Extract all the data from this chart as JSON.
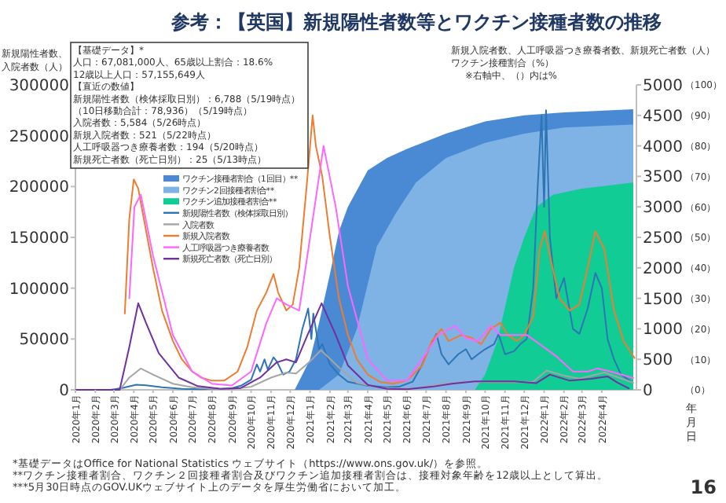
{
  "chart_data": {
    "type": "line",
    "title": "参考：【英国】新規陽性者数等とワクチン接種者数の推移",
    "xlabel": "年月日",
    "ylabel": "新規陽性者数、入院者数（人）",
    "y2label": "新規入院者数、人工呼吸器つき療養者数、新規死亡者数（人）ワクチン接種割合（%）",
    "legend": "left",
    "annotations": [
      "【基礎データ】*",
      "人口：67,081,000人、65歳以上割合：18.6%",
      "12歳以上人口：57,155,649人",
      "【直近の数値】",
      "新規陽性者数（検体採取日別）：6,788（5/19時点）",
      "（10日移動合計：78,936）（5/19時点）",
      "入院者数：5,584（5/26時点）",
      "新規入院者数：521（5/22時点）",
      "人工呼吸器つき療養者数：194（5/20時点）",
      "新規死亡者数（死亡日別）：25（5/13時点）",
      "※右軸中、（）内は%",
      "*基礎データはOffice for National Statistics ウェブサイト（https://www.ons.gov.uk/）を参照。",
      "**ワクチン接種者割合、ワクチン２回接種者割合及びワクチン追加接種者割合は、接種対象年齢を12歳以上として算出。",
      "***5月30日時点のGOV.UKウェブサイト上のデータを厚生労働省において加工。",
      "16"
    ],
    "xlim": [
      "2020-01-01",
      "2022-05-25"
    ],
    "xticks": [
      {
        "value": "2020-01-01",
        "label": "2020年1月"
      },
      {
        "value": "2020-02-01",
        "label": "2020年2月"
      },
      {
        "value": "2020-03-01",
        "label": "2020年3月"
      },
      {
        "value": "2020-04-01",
        "label": "2020年4月"
      },
      {
        "value": "2020-05-01",
        "label": "2020年5月"
      },
      {
        "value": "2020-06-01",
        "label": "2020年6月"
      },
      {
        "value": "2020-07-01",
        "label": "2020年7月"
      },
      {
        "value": "2020-08-01",
        "label": "2020年8月"
      },
      {
        "value": "2020-09-01",
        "label": "2020年9月"
      },
      {
        "value": "2020-10-01",
        "label": "2020年10月"
      },
      {
        "value": "2020-11-01",
        "label": "2020年11月"
      },
      {
        "value": "2020-12-01",
        "label": "2020年12月"
      },
      {
        "value": "2021-01-01",
        "label": "2021年1月"
      },
      {
        "value": "2021-02-01",
        "label": "2021年2月"
      },
      {
        "value": "2021-03-01",
        "label": "2021年3月"
      },
      {
        "value": "2021-04-01",
        "label": "2021年4月"
      },
      {
        "value": "2021-05-01",
        "label": "2021年5月"
      },
      {
        "value": "2021-06-01",
        "label": "2021年6月"
      },
      {
        "value": "2021-07-01",
        "label": "2021年7月"
      },
      {
        "value": "2021-08-01",
        "label": "2021年8月"
      },
      {
        "value": "2021-09-01",
        "label": "2021年9月"
      },
      {
        "value": "2021-10-01",
        "label": "2021年10月"
      },
      {
        "value": "2021-11-01",
        "label": "2021年11月"
      },
      {
        "value": "2021-12-01",
        "label": "2021年12月"
      },
      {
        "value": "2022-01-01",
        "label": "2022年1月"
      },
      {
        "value": "2022-02-01",
        "label": "2022年2月"
      },
      {
        "value": "2022-03-01",
        "label": "2022年3月"
      },
      {
        "value": "2022-04-01",
        "label": "2022年4月"
      }
    ],
    "ylim": [
      0,
      300000
    ],
    "yticks": [
      0,
      50000,
      100000,
      150000,
      200000,
      250000,
      300000
    ],
    "y2lim": [
      0,
      5000
    ],
    "y2ticks": [
      0,
      500,
      1000,
      1500,
      2000,
      2500,
      3000,
      3500,
      4000,
      4500,
      5000
    ],
    "y3lim": [
      0,
      100
    ],
    "y3ticks": [
      {
        "value": 0,
        "label": "（0）"
      },
      {
        "value": 10,
        "label": "（10）"
      },
      {
        "value": 20,
        "label": "（20）"
      },
      {
        "value": 30,
        "label": "（30）"
      },
      {
        "value": 40,
        "label": "（40）"
      },
      {
        "value": 50,
        "label": "（50）"
      },
      {
        "value": 60,
        "label": "（60）"
      },
      {
        "value": 70,
        "label": "（70）"
      },
      {
        "value": 80,
        "label": "（80）"
      },
      {
        "value": 90,
        "label": "（90）"
      },
      {
        "value": 100,
        "label": "（100）"
      }
    ],
    "series": [
      {
        "name": "ワクチン接種者割合（1回目）**",
        "type": "area",
        "axis": "y3",
        "color": "#4a89d4",
        "x": [
          "2020-12-08",
          "2021-01-01",
          "2021-01-15",
          "2021-02-01",
          "2021-02-15",
          "2021-03-01",
          "2021-04-01",
          "2021-05-01",
          "2021-06-01",
          "2021-08-01",
          "2021-10-01",
          "2021-12-01",
          "2022-02-01",
          "2022-05-20"
        ],
        "values": [
          0,
          10,
          22,
          38,
          52,
          60,
          72,
          76,
          79,
          84,
          88,
          90,
          91,
          92
        ]
      },
      {
        "name": "ワクチン2回接種者割合**",
        "type": "area",
        "axis": "y3",
        "color": "#7fb2e5",
        "x": [
          "2021-01-15",
          "2021-02-15",
          "2021-03-15",
          "2021-04-15",
          "2021-05-15",
          "2021-06-15",
          "2021-08-01",
          "2021-10-01",
          "2021-12-01",
          "2022-02-01",
          "2022-05-20"
        ],
        "values": [
          0,
          5,
          20,
          47,
          58,
          68,
          76,
          81,
          84,
          86,
          87
        ]
      },
      {
        "name": "ワクチン追加接種者割合**",
        "type": "area",
        "axis": "y3",
        "color": "#12cc96",
        "x": [
          "2021-09-15",
          "2021-10-01",
          "2021-10-20",
          "2021-11-15",
          "2021-12-01",
          "2021-12-20",
          "2022-01-15",
          "2022-03-01",
          "2022-05-20"
        ],
        "values": [
          0,
          5,
          16,
          40,
          50,
          60,
          64,
          66,
          68
        ]
      },
      {
        "name": "新規陽性者数（検体採取日別）",
        "axis": "y",
        "color": "#2e75b6",
        "x": [
          "2020-01-01",
          "2020-02-25",
          "2020-03-15",
          "2020-04-05",
          "2020-04-20",
          "2020-05-15",
          "2020-06-15",
          "2020-07-15",
          "2020-08-15",
          "2020-09-01",
          "2020-09-15",
          "2020-10-01",
          "2020-10-10",
          "2020-10-15",
          "2020-10-22",
          "2020-10-27",
          "2020-11-05",
          "2020-11-10",
          "2020-11-20",
          "2020-11-30",
          "2020-12-10",
          "2020-12-20",
          "2020-12-29",
          "2021-01-03",
          "2021-01-06",
          "2021-01-15",
          "2021-01-20",
          "2021-02-01",
          "2021-02-15",
          "2021-03-01",
          "2021-04-01",
          "2021-05-01",
          "2021-05-20",
          "2021-06-10",
          "2021-06-25",
          "2021-07-05",
          "2021-07-17",
          "2021-07-25",
          "2021-08-05",
          "2021-08-20",
          "2021-09-01",
          "2021-09-10",
          "2021-09-20",
          "2021-10-01",
          "2021-10-15",
          "2021-10-22",
          "2021-11-01",
          "2021-11-15",
          "2021-11-25",
          "2021-12-05",
          "2021-12-15",
          "2021-12-22",
          "2021-12-28",
          "2022-01-01",
          "2022-01-04",
          "2022-01-10",
          "2022-01-20",
          "2022-02-01",
          "2022-02-15",
          "2022-02-25",
          "2022-03-10",
          "2022-03-22",
          "2022-04-01",
          "2022-04-10",
          "2022-04-20",
          "2022-05-01",
          "2022-05-19"
        ],
        "values": [
          0,
          0,
          2000,
          5000,
          4500,
          2500,
          1000,
          600,
          1000,
          1500,
          4000,
          10000,
          25000,
          18000,
          30000,
          20000,
          32000,
          28000,
          15000,
          18000,
          30000,
          60000,
          80000,
          50000,
          75000,
          40000,
          45000,
          25000,
          15000,
          8000,
          4000,
          2500,
          3000,
          8000,
          25000,
          40000,
          55000,
          35000,
          25000,
          35000,
          40000,
          30000,
          35000,
          40000,
          45000,
          55000,
          35000,
          38000,
          45000,
          50000,
          100000,
          200000,
          270000,
          180000,
          275000,
          150000,
          90000,
          110000,
          60000,
          55000,
          80000,
          115000,
          100000,
          50000,
          30000,
          15000,
          7000
        ]
      },
      {
        "name": "入院者数",
        "axis": "y",
        "color": "#a5a5a5",
        "x": [
          "2020-01-01",
          "2020-03-10",
          "2020-03-25",
          "2020-04-12",
          "2020-05-01",
          "2020-06-01",
          "2020-07-01",
          "2020-08-01",
          "2020-09-01",
          "2020-10-01",
          "2020-11-01",
          "2020-11-25",
          "2020-12-10",
          "2021-01-01",
          "2021-01-18",
          "2021-02-15",
          "2021-03-15",
          "2021-04-15",
          "2021-05-15",
          "2021-06-15",
          "2021-07-20",
          "2021-09-01",
          "2021-10-15",
          "2021-11-20",
          "2021-12-15",
          "2022-01-05",
          "2022-02-01",
          "2022-02-25",
          "2022-04-05",
          "2022-05-20"
        ],
        "values": [
          0,
          0,
          12000,
          21000,
          15000,
          6000,
          2500,
          1000,
          800,
          3000,
          12000,
          17000,
          16000,
          28000,
          39000,
          22000,
          7000,
          2500,
          1000,
          1500,
          5500,
          8000,
          7500,
          7500,
          8000,
          19000,
          14000,
          11000,
          17000,
          7000
        ]
      },
      {
        "name": "新規入院者数",
        "axis": "y2",
        "color": "#ed7d31",
        "x": [
          "2020-03-18",
          "2020-03-25",
          "2020-04-01",
          "2020-04-08",
          "2020-04-15",
          "2020-05-01",
          "2020-05-15",
          "2020-06-01",
          "2020-06-15",
          "2020-07-01",
          "2020-07-15",
          "2020-08-01",
          "2020-08-20",
          "2020-09-10",
          "2020-09-25",
          "2020-10-10",
          "2020-10-25",
          "2020-11-05",
          "2020-11-12",
          "2020-11-25",
          "2020-12-05",
          "2020-12-15",
          "2020-12-28",
          "2021-01-05",
          "2021-01-10",
          "2021-01-20",
          "2021-02-01",
          "2021-02-15",
          "2021-03-01",
          "2021-03-15",
          "2021-04-01",
          "2021-04-20",
          "2021-05-10",
          "2021-06-01",
          "2021-06-25",
          "2021-07-10",
          "2021-07-25",
          "2021-08-05",
          "2021-08-25",
          "2021-09-10",
          "2021-09-25",
          "2021-10-10",
          "2021-10-25",
          "2021-11-05",
          "2021-11-20",
          "2021-12-01",
          "2021-12-15",
          "2021-12-25",
          "2022-01-02",
          "2022-01-10",
          "2022-01-25",
          "2022-02-10",
          "2022-02-25",
          "2022-03-10",
          "2022-03-22",
          "2022-04-05",
          "2022-04-20",
          "2022-05-05",
          "2022-05-22"
        ],
        "values": [
          1250,
          2800,
          3450,
          3300,
          2900,
          2000,
          1300,
          800,
          500,
          300,
          200,
          150,
          150,
          300,
          700,
          1300,
          1600,
          1900,
          1600,
          1300,
          1400,
          2000,
          3500,
          4500,
          4000,
          3500,
          2500,
          1500,
          900,
          500,
          250,
          130,
          100,
          150,
          400,
          800,
          1000,
          800,
          900,
          850,
          750,
          1000,
          1100,
          900,
          800,
          900,
          1200,
          2300,
          2600,
          2200,
          1500,
          1300,
          1400,
          2000,
          2600,
          2300,
          1300,
          800,
          521
        ]
      },
      {
        "name": "人工呼吸器つき療養者数",
        "axis": "y2",
        "color": "#ff66ff",
        "x": [
          "2020-03-25",
          "2020-04-02",
          "2020-04-12",
          "2020-05-01",
          "2020-06-01",
          "2020-07-01",
          "2020-08-01",
          "2020-09-01",
          "2020-10-01",
          "2020-10-25",
          "2020-11-10",
          "2020-11-25",
          "2020-12-15",
          "2021-01-01",
          "2021-01-22",
          "2021-02-10",
          "2021-03-01",
          "2021-04-01",
          "2021-05-01",
          "2021-06-01",
          "2021-07-01",
          "2021-07-20",
          "2021-08-15",
          "2021-09-01",
          "2021-09-20",
          "2021-10-10",
          "2021-10-25",
          "2021-11-20",
          "2021-12-05",
          "2021-12-25",
          "2022-01-20",
          "2022-02-15",
          "2022-03-10",
          "2022-03-25",
          "2022-04-15",
          "2022-05-20"
        ],
        "values": [
          1500,
          3000,
          3200,
          2200,
          900,
          300,
          100,
          70,
          300,
          1100,
          1500,
          1400,
          1300,
          2500,
          4000,
          3000,
          1700,
          500,
          150,
          150,
          600,
          900,
          1050,
          850,
          800,
          1050,
          900,
          900,
          900,
          750,
          550,
          300,
          300,
          350,
          300,
          194
        ]
      },
      {
        "name": "新規死亡者数（死亡日別）",
        "axis": "y2",
        "color": "#7030a0",
        "x": [
          "2020-01-01",
          "2020-03-10",
          "2020-03-25",
          "2020-04-08",
          "2020-04-20",
          "2020-05-10",
          "2020-06-10",
          "2020-07-10",
          "2020-08-15",
          "2020-09-15",
          "2020-10-15",
          "2020-11-10",
          "2020-11-25",
          "2020-12-10",
          "2020-12-28",
          "2021-01-19",
          "2021-02-10",
          "2021-03-01",
          "2021-04-01",
          "2021-05-01",
          "2021-06-01",
          "2021-07-10",
          "2021-08-10",
          "2021-09-15",
          "2021-10-15",
          "2021-11-15",
          "2021-12-20",
          "2022-01-10",
          "2022-02-10",
          "2022-03-15",
          "2022-04-10",
          "2022-04-25",
          "2022-05-13"
        ],
        "values": [
          0,
          0,
          700,
          1420,
          1100,
          600,
          200,
          60,
          15,
          30,
          200,
          450,
          500,
          450,
          900,
          1420,
          900,
          400,
          80,
          15,
          10,
          50,
          100,
          140,
          140,
          140,
          110,
          250,
          150,
          180,
          220,
          120,
          25
        ]
      }
    ]
  }
}
